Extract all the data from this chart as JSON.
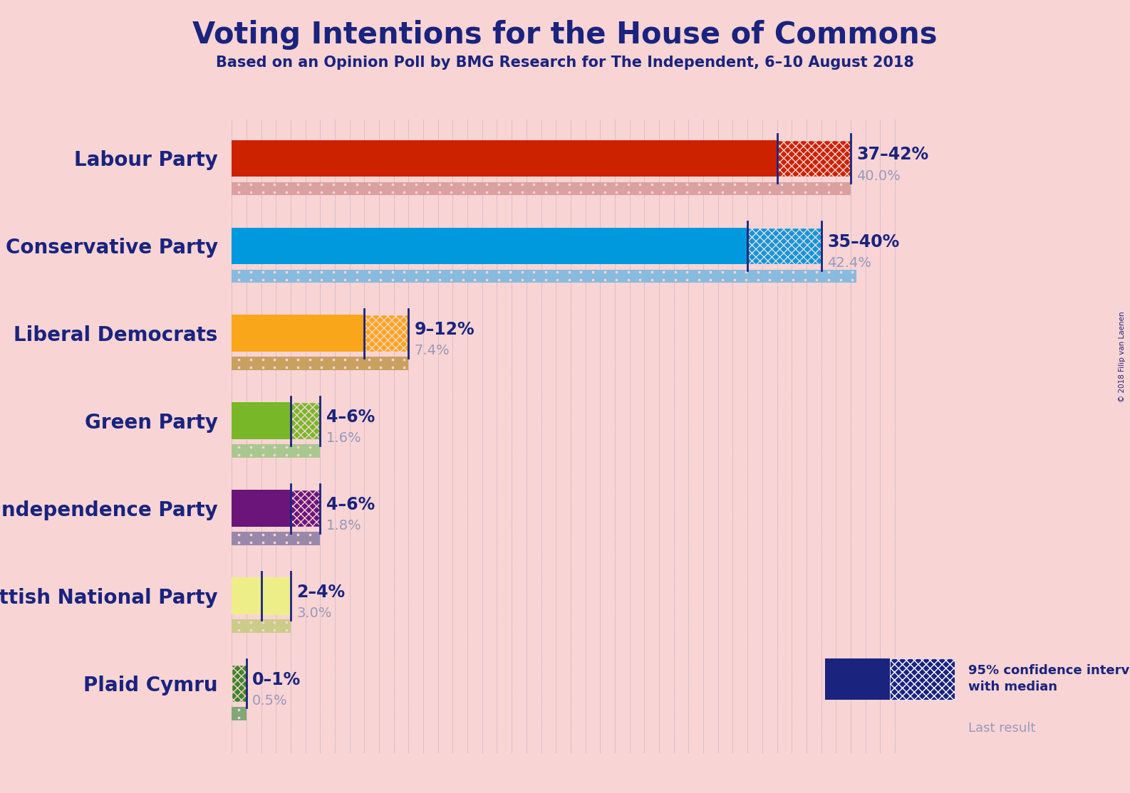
{
  "title": "Voting Intentions for the House of Commons",
  "subtitle": "Based on an Opinion Poll by BMG Research for The Independent, 6–10 August 2018",
  "copyright": "© 2018 Filip van Laenen",
  "background_color": "#f8d4d4",
  "title_color": "#1a237e",
  "parties": [
    {
      "name": "Labour Party",
      "ci_low": 37,
      "ci_high": 42,
      "last_result": 40.0,
      "bar_color": "#cc2200",
      "last_color": "#dba0a0",
      "hatch_edge": "#f8d4d4",
      "label_range": "37–42%",
      "label_last": "40.0%"
    },
    {
      "name": "Conservative Party",
      "ci_low": 35,
      "ci_high": 40,
      "last_result": 42.4,
      "bar_color": "#0099dd",
      "last_color": "#88bbdd",
      "hatch_edge": "#f8d4d4",
      "label_range": "35–40%",
      "label_last": "42.4%"
    },
    {
      "name": "Liberal Democrats",
      "ci_low": 9,
      "ci_high": 12,
      "last_result": 7.4,
      "bar_color": "#faa61a",
      "last_color": "#c8a060",
      "hatch_edge": "#f8d4d4",
      "label_range": "9–12%",
      "label_last": "7.4%"
    },
    {
      "name": "Green Party",
      "ci_low": 4,
      "ci_high": 6,
      "last_result": 1.6,
      "bar_color": "#78b828",
      "last_color": "#a8c890",
      "hatch_edge": "#f8d4d4",
      "label_range": "4–6%",
      "label_last": "1.6%"
    },
    {
      "name": "UK Independence Party",
      "ci_low": 4,
      "ci_high": 6,
      "last_result": 1.8,
      "bar_color": "#6b157b",
      "last_color": "#9988aa",
      "hatch_edge": "#f8d4d4",
      "label_range": "4–6%",
      "label_last": "1.8%"
    },
    {
      "name": "Scottish National Party",
      "ci_low": 2,
      "ci_high": 4,
      "last_result": 3.0,
      "bar_color": "#eeee88",
      "last_color": "#cccc88",
      "hatch_edge": "#eeee88",
      "label_range": "2–4%",
      "label_last": "3.0%"
    },
    {
      "name": "Plaid Cymru",
      "ci_low": 0,
      "ci_high": 1,
      "last_result": 0.5,
      "bar_color": "#3f8428",
      "last_color": "#80a878",
      "hatch_edge": "#f8d4d4",
      "label_range": "0–1%",
      "label_last": "0.5%"
    }
  ],
  "x_max": 46,
  "label_color_range": "#1a237e",
  "label_color_last": "#9999bb",
  "grid_color": "#1a237e",
  "tick_color": "#1a237e"
}
